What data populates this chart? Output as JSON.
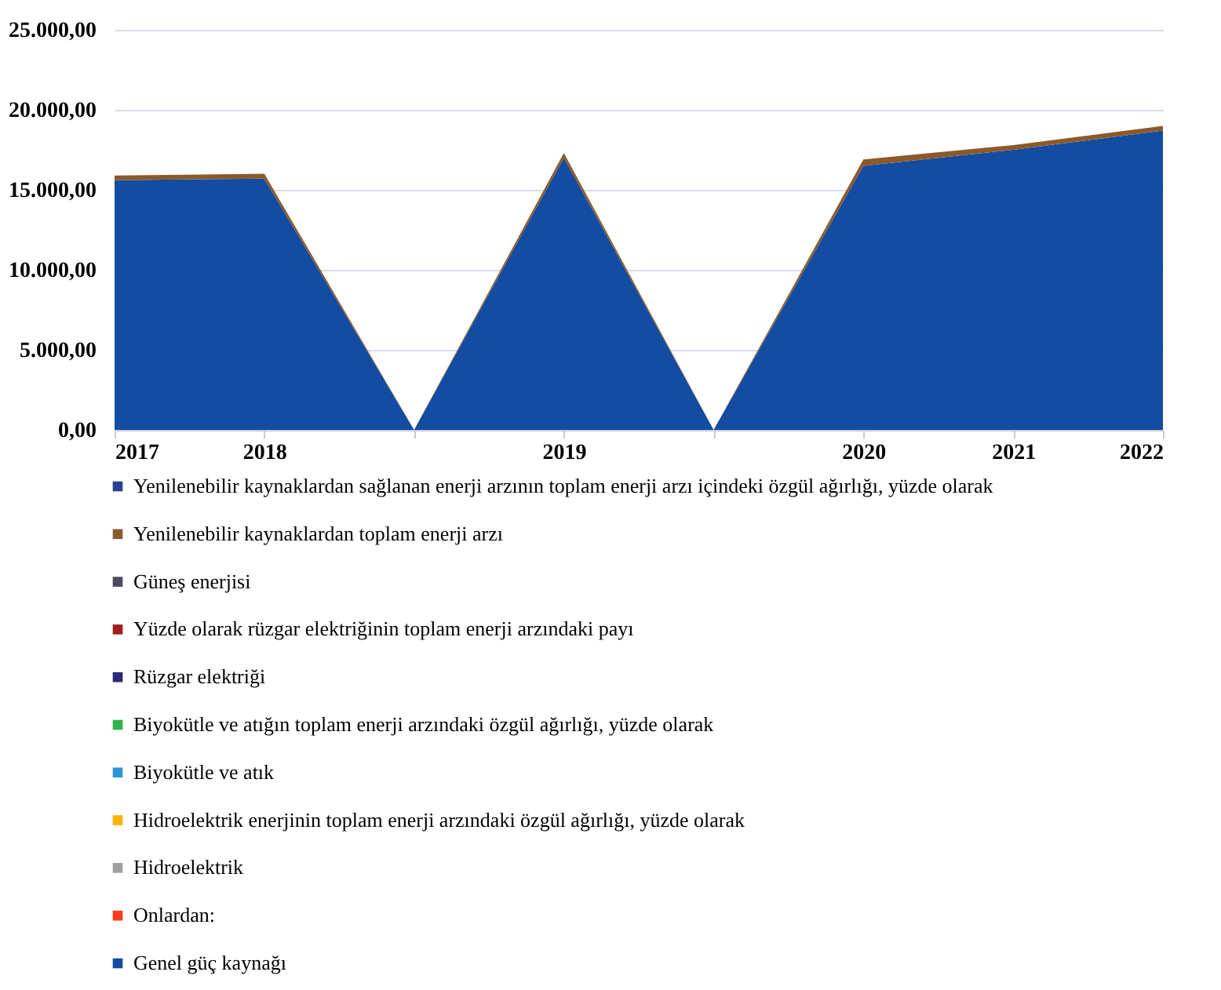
{
  "chart_data": {
    "type": "area",
    "stacked": true,
    "categories": [
      "2017",
      "2018",
      null,
      "2019",
      null,
      "2020",
      "2021",
      "2022"
    ],
    "series": [
      {
        "name": "Genel güç kaynağı",
        "color": "#134ca0",
        "values": [
          15600,
          15700,
          0,
          17000,
          0,
          16500,
          17500,
          18700
        ]
      },
      {
        "name": "Onlardan:",
        "color": "#ff3b1f",
        "values": [
          null,
          null,
          null,
          null,
          null,
          null,
          null,
          null
        ]
      },
      {
        "name": "Hidroelektrik",
        "color": "#a0a0a0",
        "values": [
          null,
          null,
          null,
          null,
          null,
          null,
          null,
          null
        ]
      },
      {
        "name": "Hidroelektrik enerjinin toplam enerji arzındaki özgül ağırlığı, yüzde olarak",
        "color": "#ffb000",
        "values": [
          null,
          null,
          null,
          null,
          null,
          null,
          null,
          null
        ]
      },
      {
        "name": "Biyokütle ve atık",
        "color": "#2b95d8",
        "values": [
          null,
          null,
          null,
          null,
          null,
          null,
          null,
          null
        ]
      },
      {
        "name": "Biyokütle ve atığın toplam enerji arzındaki özgül ağırlığı, yüzde olarak",
        "color": "#2db34a",
        "values": [
          null,
          null,
          null,
          null,
          null,
          null,
          null,
          null
        ]
      },
      {
        "name": "Rüzgar elektriği",
        "color": "#27297a",
        "values": [
          null,
          null,
          null,
          null,
          null,
          null,
          null,
          null
        ]
      },
      {
        "name": "Yüzde olarak rüzgar elektriğinin toplam enerji arzındaki payı",
        "color": "#a0201c",
        "values": [
          null,
          null,
          null,
          null,
          null,
          null,
          null,
          null
        ]
      },
      {
        "name": "Güneş enerjisi",
        "color": "#4a4a5e",
        "values": [
          null,
          null,
          null,
          null,
          null,
          null,
          null,
          null
        ]
      },
      {
        "name": "Yenilenebilir kaynaklardan toplam enerji arzı",
        "color": "#8b5a2b",
        "values": [
          300,
          300,
          0,
          300,
          0,
          400,
          300,
          300
        ]
      },
      {
        "name": "Yenilenebilir kaynaklardan sağlanan enerji arzının toplam enerji arzı içindeki özgül ağırlığı, yüzde olarak",
        "color": "#2a3f8f",
        "values": [
          null,
          null,
          null,
          null,
          null,
          null,
          null,
          null
        ]
      }
    ],
    "ylim": [
      0,
      25000
    ],
    "yticks": [
      {
        "value": 0,
        "label": "0,00"
      },
      {
        "value": 5000,
        "label": "5.000,00"
      },
      {
        "value": 10000,
        "label": "10.000,00"
      },
      {
        "value": 15000,
        "label": "15.000,00"
      },
      {
        "value": 20000,
        "label": "20.000,00"
      },
      {
        "value": 25000,
        "label": "25.000,00"
      }
    ],
    "grid": "y",
    "legend": "bottom"
  }
}
